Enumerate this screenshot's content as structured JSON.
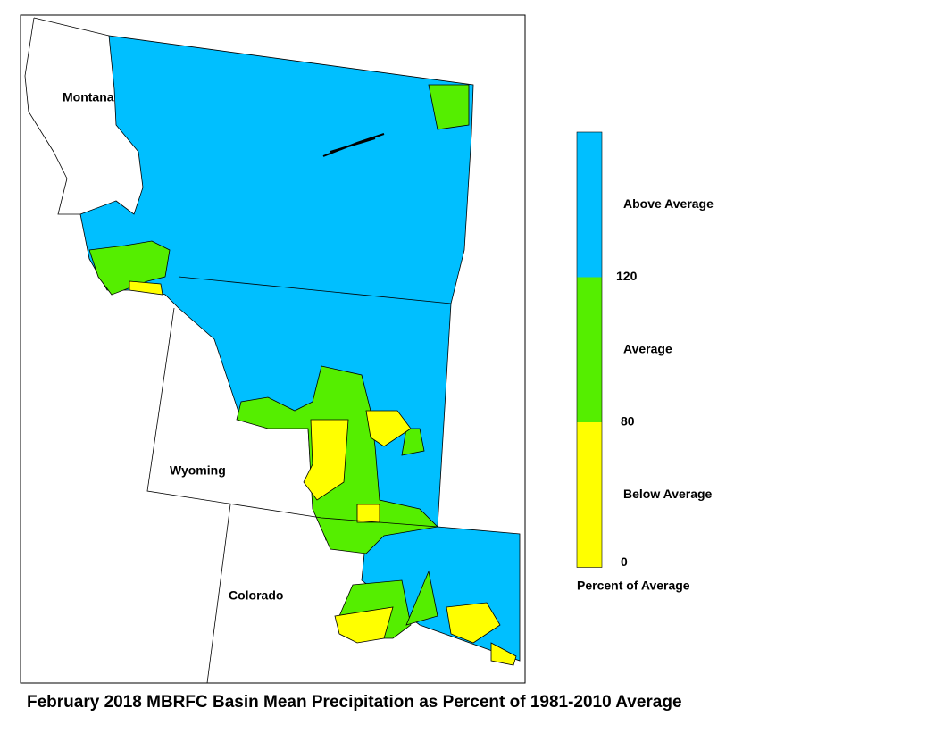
{
  "map": {
    "states": [
      "Montana",
      "Wyoming",
      "Colorado"
    ]
  },
  "legend": {
    "bands": [
      {
        "label": "Above Average",
        "color": "#00bfff"
      },
      {
        "label": "Average",
        "color": "#55ee00"
      },
      {
        "label": "Below Average",
        "color": "#ffff00"
      }
    ],
    "ticks": [
      120,
      80,
      0
    ],
    "title": "Percent of Average"
  },
  "caption": "February 2018 MBRFC Basin Mean Precipitation as Percent of 1981-2010 Average"
}
